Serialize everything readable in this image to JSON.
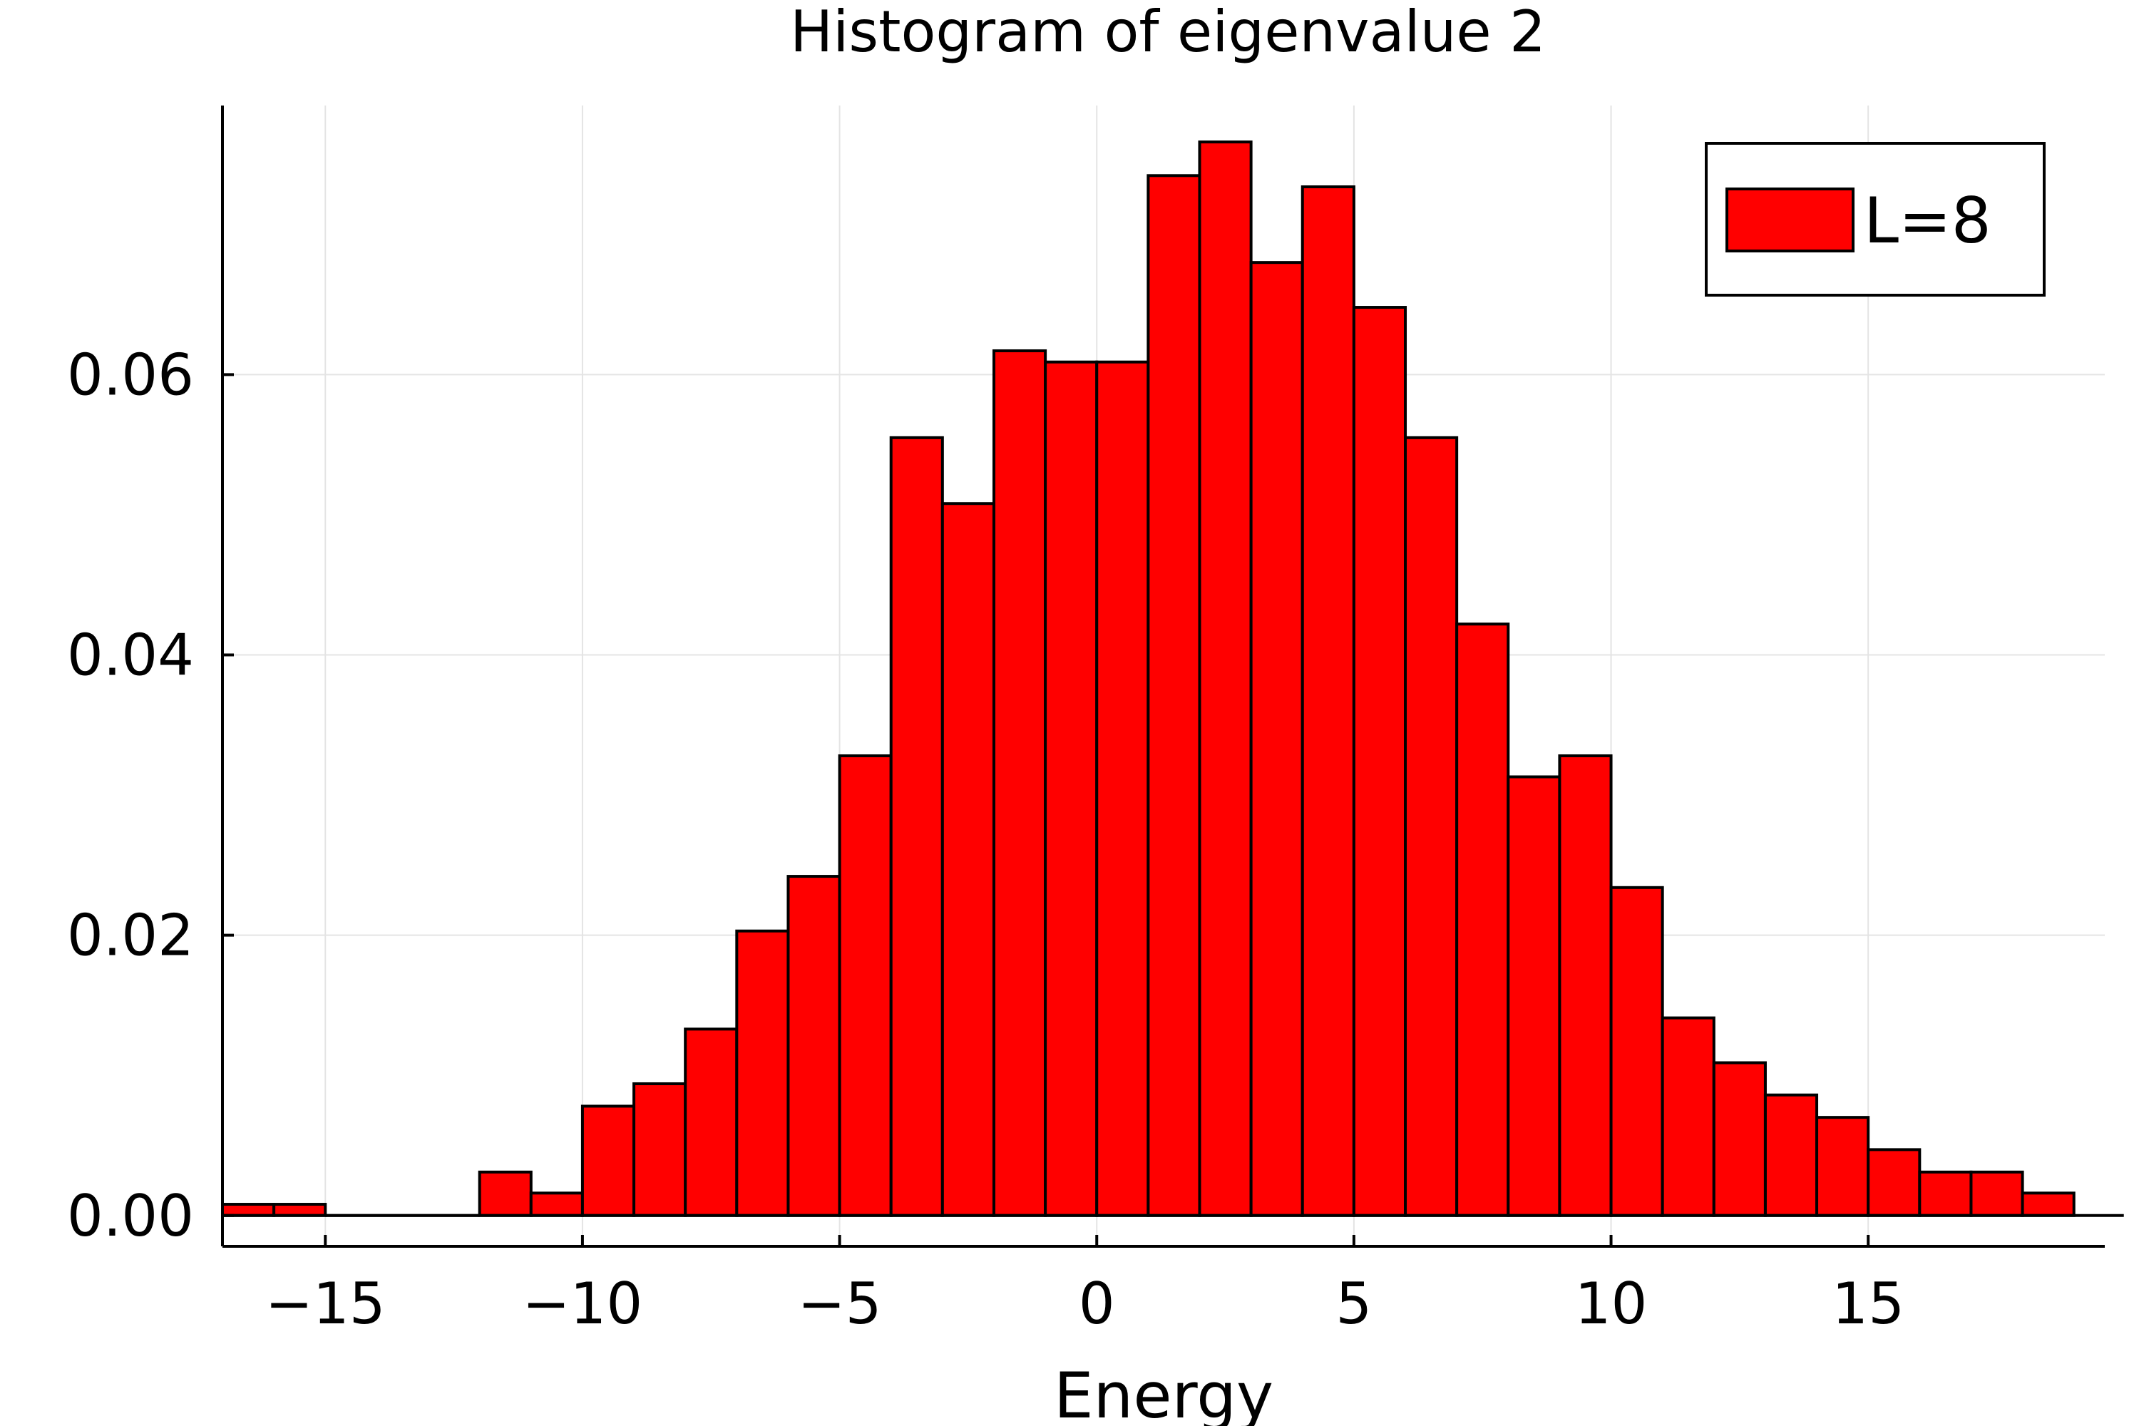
{
  "chart_data": {
    "type": "bar",
    "title": "Histogram of eigenvalue 2",
    "xlabel": "Energy",
    "ylabel": "",
    "xlim": [
      -17,
      19.6
    ],
    "ylim": [
      -0.0022,
      0.0792
    ],
    "xticks": [
      -15,
      -10,
      -5,
      0,
      5,
      10,
      15
    ],
    "xtick_labels": [
      "−15",
      "−10",
      "−5",
      "0",
      "5",
      "10",
      "15"
    ],
    "yticks": [
      0,
      0.02,
      0.04,
      0.06
    ],
    "ytick_labels": [
      "0.00",
      "0.02",
      "0.04",
      "0.06"
    ],
    "grid": true,
    "bin_edges": [
      -17,
      -16,
      -15,
      -14,
      -13,
      -12,
      -11,
      -10,
      -9,
      -8,
      -7,
      -6,
      -5,
      -4,
      -3,
      -2,
      -1,
      0,
      1,
      2,
      3,
      4,
      5,
      6,
      7,
      8,
      9,
      10,
      11,
      12,
      13,
      14,
      15,
      16,
      17,
      18,
      19
    ],
    "series": [
      {
        "name": "L=8",
        "color": "#ff0000",
        "edge_color": "#000000",
        "values": [
          0.0008,
          0.0008,
          0,
          0,
          0,
          0.0031,
          0.0016,
          0.0078,
          0.0094,
          0.0133,
          0.0203,
          0.0242,
          0.0328,
          0.0555,
          0.0508,
          0.0617,
          0.0609,
          0.0609,
          0.0742,
          0.0766,
          0.068,
          0.0734,
          0.0648,
          0.0555,
          0.0422,
          0.0313,
          0.0328,
          0.0234,
          0.0141,
          0.0109,
          0.0086,
          0.007,
          0.0047,
          0.0031,
          0.0031,
          0.0016
        ]
      }
    ],
    "legend": {
      "position": "top-right",
      "entries": [
        "L=8"
      ]
    }
  }
}
